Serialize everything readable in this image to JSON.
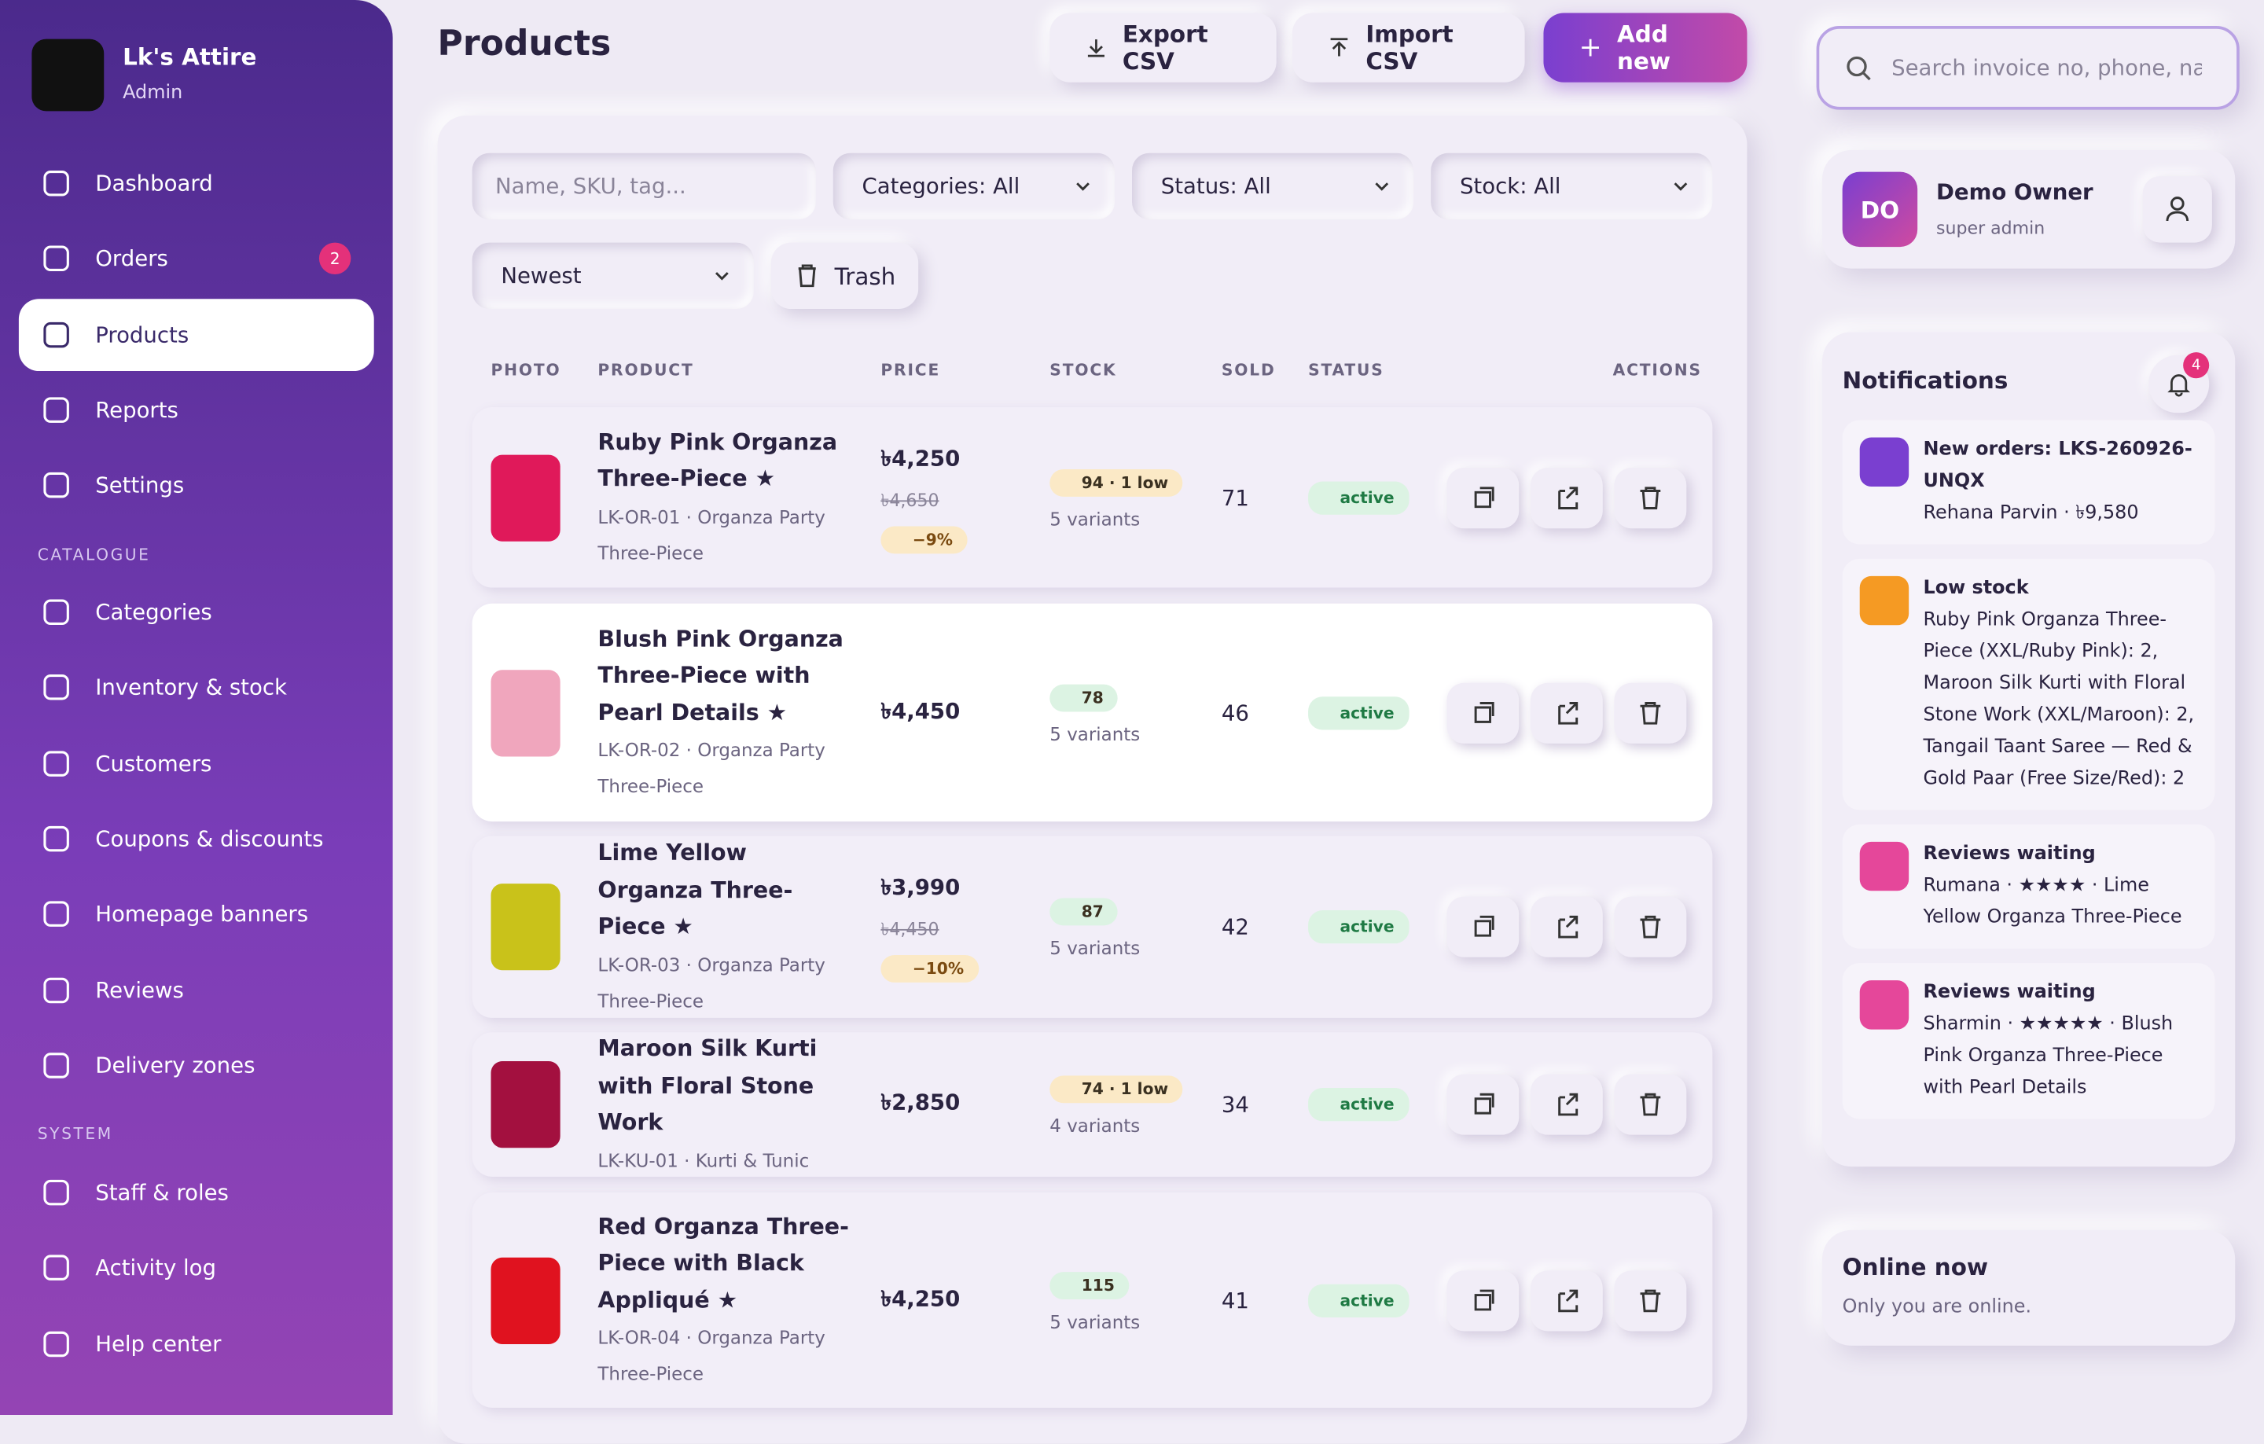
{
  "sidebar": {
    "brand": "Lk's Attire",
    "role": "Admin",
    "nav": [
      {
        "label": "Dashboard"
      },
      {
        "label": "Orders",
        "badge": 2
      },
      {
        "label": "Products"
      },
      {
        "label": "Reports"
      },
      {
        "label": "Settings"
      }
    ],
    "sections": [
      {
        "title": "CATALOGUE",
        "items": [
          "Categories",
          "Inventory & stock",
          "Customers",
          "Coupons & discounts",
          "Homepage banners",
          "Reviews",
          "Delivery zones"
        ]
      },
      {
        "title": "SYSTEM",
        "items": [
          "Staff & roles",
          "Activity log",
          "Help center"
        ]
      }
    ]
  },
  "header": {
    "title": "Products",
    "buttons": [
      "Export CSV",
      "Import CSV",
      "Add new"
    ],
    "search": "Search invoice no, phone, nam"
  },
  "filters": {
    "search": "Name, SKU, tag...",
    "selects": [
      "Categories: All",
      "Status: All",
      "Stock: All"
    ],
    "sort": "Newest",
    "trash": "Trash"
  },
  "table": {
    "columns": [
      "PHOTO",
      "PRODUCT",
      "PRICE",
      "STOCK",
      "SOLD",
      "STATUS",
      "ACTIONS"
    ],
    "rows": [
      {
        "name": "Ruby Pink Organza Three-Piece ★",
        "meta": "LK-OR-01 · Organza Party Three-Piece",
        "price": "৳4,250",
        "old_price": "৳4,650",
        "discount": "−9%",
        "stock": "94 · 1 low",
        "stock_color": "#fbe9c6",
        "variants": "5 variants",
        "sold": 71,
        "status": "active",
        "photo_color": "#e0195a"
      },
      {
        "name": "Blush Pink Organza Three-Piece with Pearl Details ★",
        "meta": "LK-OR-02 · Organza Party Three-Piece",
        "price": "৳4,450",
        "stock": "78",
        "stock_color": "#dcf3e3",
        "variants": "5 variants",
        "sold": 46,
        "status": "active",
        "photo_color": "#f0a6bd"
      },
      {
        "name": "Lime Yellow Organza Three-Piece ★",
        "meta": "LK-OR-03 · Organza Party Three-Piece",
        "price": "৳3,990",
        "old_price": "৳4,450",
        "discount": "−10%",
        "stock": "87",
        "stock_color": "#dcf3e3",
        "variants": "5 variants",
        "sold": 42,
        "status": "active",
        "photo_color": "#c9c21a"
      },
      {
        "name": "Maroon Silk Kurti with Floral Stone Work",
        "meta": "LK-KU-01 · Kurti & Tunic",
        "price": "৳2,850",
        "stock": "74 · 1 low",
        "stock_color": "#fbe9c6",
        "variants": "4 variants",
        "sold": 34,
        "status": "active",
        "photo_color": "#a3103f"
      },
      {
        "name": "Red Organza Three-Piece with Black Appliqué ★",
        "meta": "LK-OR-04 · Organza Party Three-Piece",
        "price": "৳4,250",
        "stock": "115",
        "stock_color": "#dcf3e3",
        "variants": "5 variants",
        "sold": 41,
        "status": "active",
        "photo_color": "#e0121f"
      }
    ]
  },
  "user": {
    "initials": "DO",
    "name": "Demo Owner",
    "role": "super admin"
  },
  "notifications": {
    "title": "Notifications",
    "badge": 4,
    "items": [
      {
        "title": "New orders: LKS-260926-UNQX",
        "text": "Rehana Parvin · ৳9,580",
        "color": "#7a3fd0"
      },
      {
        "title": "Low stock",
        "text": "Ruby Pink Organza Three-Piece (XXL/Ruby Pink): 2, Maroon Silk Kurti with Floral Stone Work (XXL/Maroon): 2, Tangail Taant Saree — Red & Gold Paar (Free Size/Red): 2",
        "color": "#f59a23"
      },
      {
        "title": "Reviews waiting",
        "text": "Rumana · ★★★★ · Lime Yellow Organza Three-Piece",
        "color": "#e5479a"
      },
      {
        "title": "Reviews waiting",
        "text": "Sharmin · ★★★★★ · Blush Pink Organza Three-Piece with Pearl Details",
        "color": "#e5479a"
      }
    ]
  },
  "online": {
    "title": "Online now",
    "text": "Only you are online."
  }
}
